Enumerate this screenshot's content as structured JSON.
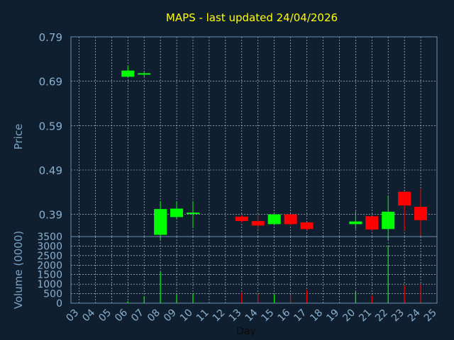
{
  "chart_data": [
    {
      "type": "candlestick",
      "title": "MAPS - last updated 24/04/2026",
      "ylabel": "Price",
      "ylim": [
        0.34,
        0.79
      ],
      "yticks": [
        "0.79",
        "0.69",
        "0.59",
        "0.49",
        "0.39"
      ],
      "grid": true,
      "candles": [
        {
          "day": 6,
          "open": 0.7,
          "close": 0.714,
          "high": 0.725,
          "low": 0.7
        },
        {
          "day": 7,
          "open": 0.705,
          "close": 0.708,
          "high": 0.712,
          "low": 0.7
        },
        {
          "day": 8,
          "open": 0.344,
          "close": 0.402,
          "high": 0.42,
          "low": 0.333
        },
        {
          "day": 9,
          "open": 0.384,
          "close": 0.403,
          "high": 0.42,
          "low": 0.38
        },
        {
          "day": 10,
          "open": 0.392,
          "close": 0.394,
          "high": 0.42,
          "low": 0.36
        },
        {
          "day": 13,
          "open": 0.385,
          "close": 0.375,
          "high": 0.388,
          "low": 0.372
        },
        {
          "day": 14,
          "open": 0.375,
          "close": 0.365,
          "high": 0.39,
          "low": 0.355
        },
        {
          "day": 15,
          "open": 0.368,
          "close": 0.39,
          "high": 0.39,
          "low": 0.368
        },
        {
          "day": 16,
          "open": 0.39,
          "close": 0.368,
          "high": 0.39,
          "low": 0.365
        },
        {
          "day": 17,
          "open": 0.372,
          "close": 0.357,
          "high": 0.372,
          "low": 0.354
        },
        {
          "day": 20,
          "open": 0.368,
          "close": 0.374,
          "high": 0.397,
          "low": 0.357
        },
        {
          "day": 21,
          "open": 0.386,
          "close": 0.356,
          "high": 0.386,
          "low": 0.354
        },
        {
          "day": 22,
          "open": 0.357,
          "close": 0.396,
          "high": 0.433,
          "low": 0.332
        },
        {
          "day": 23,
          "open": 0.441,
          "close": 0.41,
          "high": 0.441,
          "low": 0.354
        },
        {
          "day": 24,
          "open": 0.407,
          "close": 0.377,
          "high": 0.447,
          "low": 0.342
        }
      ],
      "colors": {
        "up": "#00ff00",
        "down": "#ff0000"
      }
    },
    {
      "type": "bar",
      "ylabel": "Volume (0000)",
      "xlabel": "Day",
      "ylim": [
        0,
        3500
      ],
      "yticks": [
        "3500",
        "3000",
        "2500",
        "2000",
        "1500",
        "1000",
        "500",
        "0"
      ],
      "xticks": [
        "03",
        "04",
        "05",
        "06",
        "07",
        "08",
        "09",
        "10",
        "11",
        "12",
        "13",
        "14",
        "15",
        "16",
        "17",
        "18",
        "19",
        "20",
        "21",
        "22",
        "23",
        "24",
        "25"
      ],
      "x": [
        6,
        7,
        8,
        9,
        10,
        13,
        14,
        15,
        16,
        17,
        20,
        21,
        22,
        23,
        24
      ],
      "values": [
        100,
        350,
        1650,
        450,
        500,
        550,
        500,
        450,
        450,
        700,
        600,
        400,
        3000,
        950,
        1000
      ],
      "directions": [
        "up",
        "up",
        "up",
        "up",
        "up",
        "down",
        "down",
        "up",
        "down",
        "down",
        "up",
        "down",
        "up",
        "down",
        "down"
      ]
    }
  ],
  "colors": {
    "background": "#0f1f30",
    "title": "#ffff00",
    "tick": "#8ab0cf",
    "axis_label": "#7ba3c4",
    "frame": "#6e8faf",
    "grid": "#cfd8e0",
    "xlabel": "#0a0a0a"
  }
}
